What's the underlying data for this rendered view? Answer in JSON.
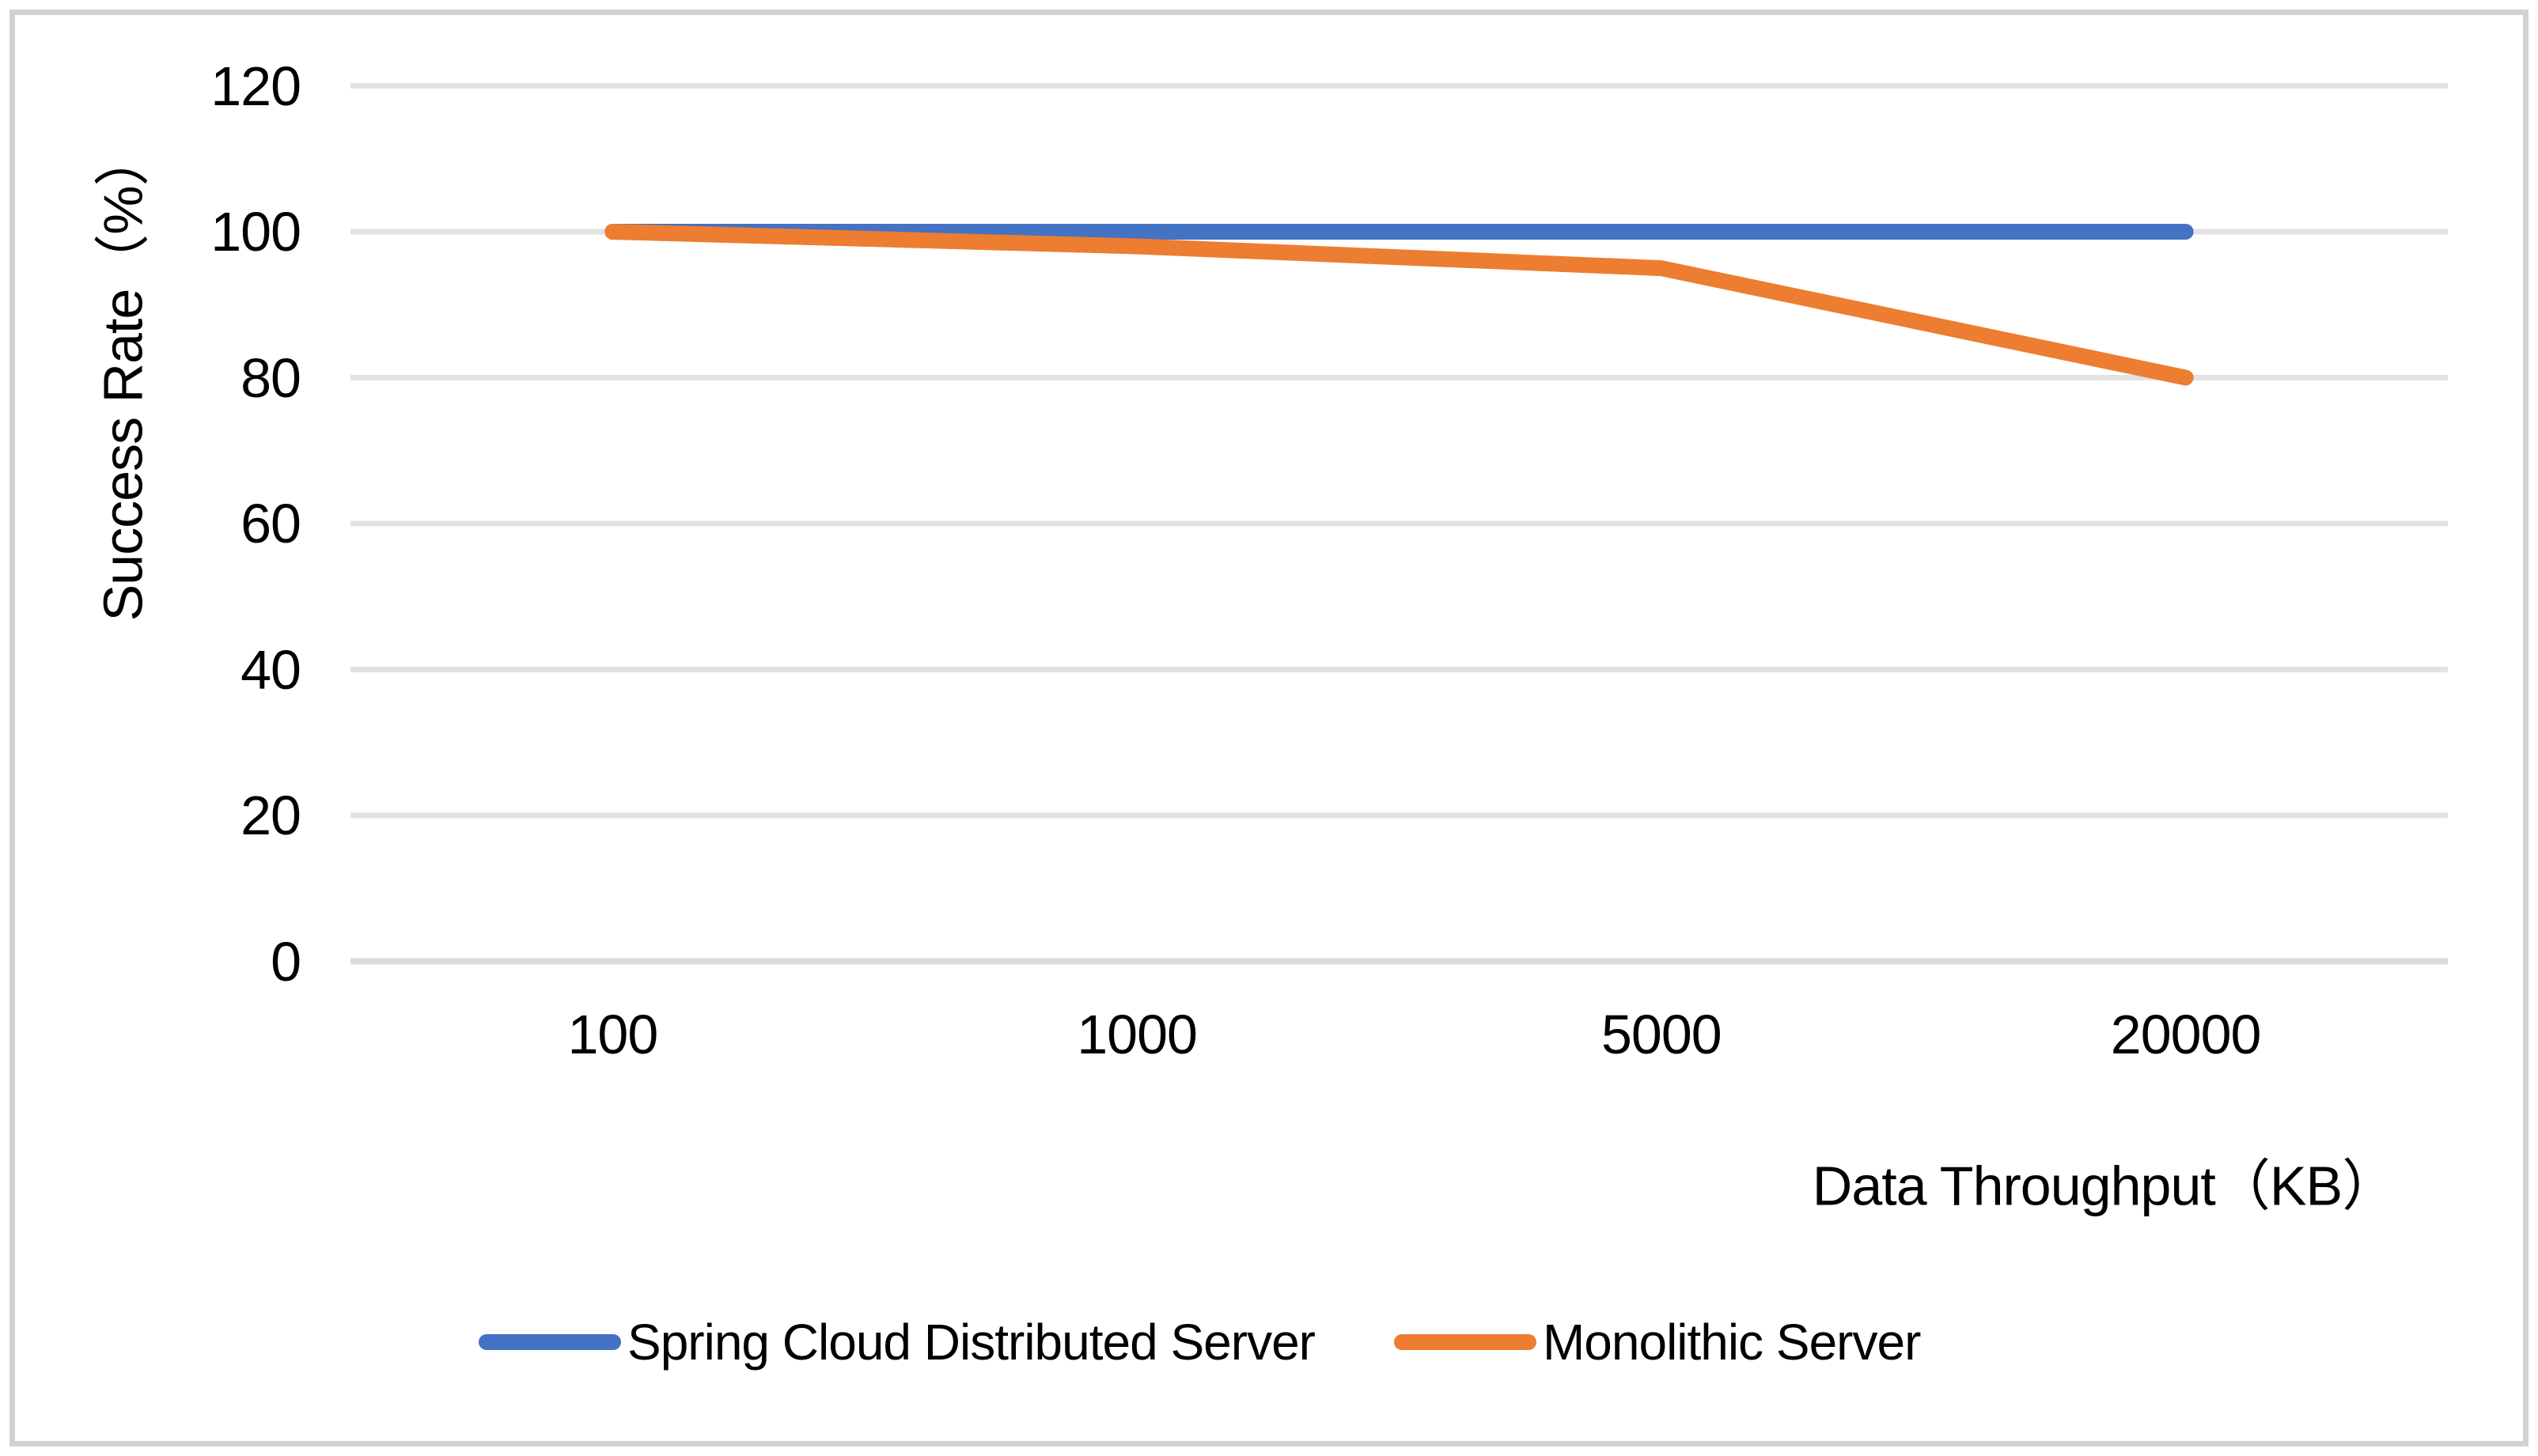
{
  "chart_data": {
    "type": "line",
    "categories": [
      "100",
      "1000",
      "5000",
      "20000"
    ],
    "series": [
      {
        "name": "Spring Cloud Distributed Server",
        "color": "#4472C4",
        "values": [
          100,
          100,
          100,
          100
        ]
      },
      {
        "name": "Monolithic Server",
        "color": "#ED7D31",
        "values": [
          100,
          98,
          95,
          80
        ]
      }
    ],
    "title": "",
    "xlabel": "Data Throughput（KB）",
    "ylabel": "Success Rate（%）",
    "ylim": [
      0,
      120
    ],
    "y_ticks": [
      0,
      20,
      40,
      60,
      80,
      100,
      120
    ],
    "grid": "horizontal",
    "gridline_color": "#e2e2e2",
    "zero_line_color": "#d9d9d9",
    "line_width": 20,
    "legend_position": "bottom",
    "text_color": "#000000",
    "frame_border_color": "#d2d2d2",
    "background_color": "#ffffff"
  }
}
